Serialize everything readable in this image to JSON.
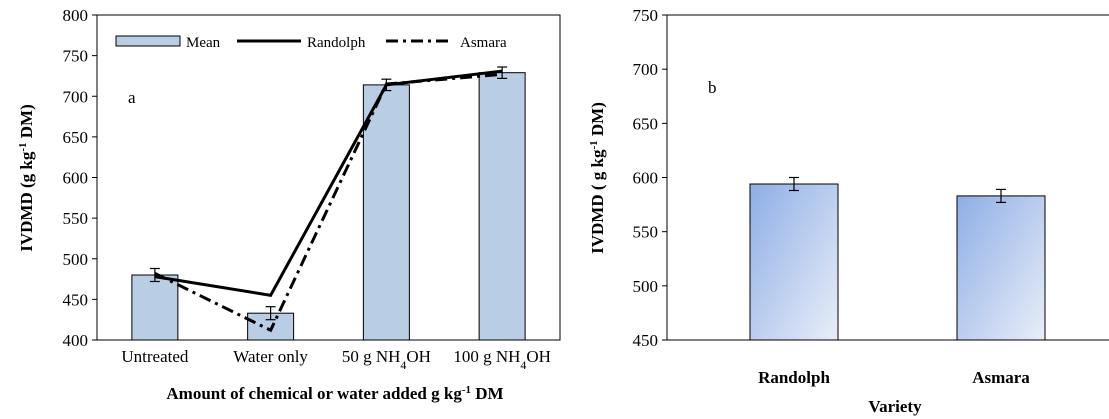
{
  "chart_data": [
    {
      "type": "bar",
      "panel_label": "a",
      "xlabel_main": "Amount of chemical or water added g kg",
      "xlabel_sup": "-1",
      "xlabel_tail": " DM",
      "ylabel_main": "IVDMD (g kg",
      "ylabel_sup": "-1",
      "ylabel_tail": " DM)",
      "ylim": [
        400,
        800
      ],
      "yticks": [
        "400",
        "450",
        "500",
        "550",
        "600",
        "650",
        "700",
        "750",
        "800"
      ],
      "categories": [
        {
          "text": "Untreated"
        },
        {
          "text": "Water only"
        },
        {
          "text": "50 g NH",
          "sub": "4",
          "tail": "OH"
        },
        {
          "text": "100 g NH",
          "sub": "4",
          "tail": "OH"
        }
      ],
      "series": [
        {
          "name": "Mean",
          "kind": "bar",
          "values": [
            480,
            433,
            714,
            729
          ],
          "error": [
            8,
            8,
            7,
            7
          ]
        },
        {
          "name": "Randolph",
          "kind": "line",
          "style": "solid",
          "values": [
            478,
            455,
            714,
            731
          ]
        },
        {
          "name": "Asmara",
          "kind": "line",
          "style": "dashdot",
          "values": [
            482,
            412,
            715,
            727
          ]
        }
      ],
      "legend_position": "top",
      "bar_color": "#b9cde5"
    },
    {
      "type": "bar",
      "panel_label": "b",
      "xlabel": "Variety",
      "ylabel_main": "IVDMD ( g kg",
      "ylabel_sup": "-1",
      "ylabel_tail": " DM)",
      "ylim": [
        450,
        750
      ],
      "yticks": [
        "450",
        "500",
        "550",
        "600",
        "650",
        "700",
        "750"
      ],
      "categories": [
        "Randolph",
        "Asmara"
      ],
      "values": [
        594,
        583
      ],
      "error": [
        6,
        6
      ],
      "bar_gradient": [
        "#8eaee6",
        "#e9eef8"
      ]
    }
  ]
}
